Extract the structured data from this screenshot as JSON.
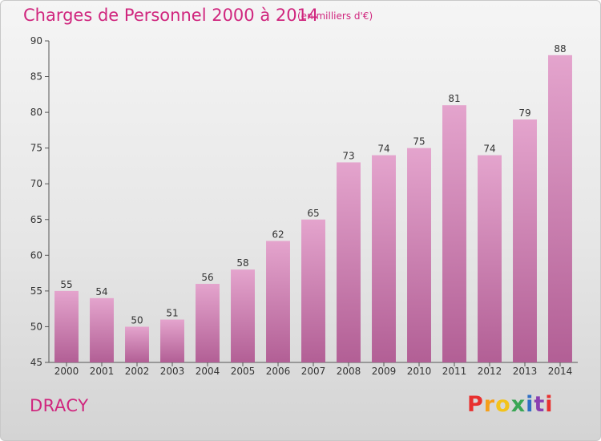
{
  "header": {
    "title": "Charges de Personnel 2000 à 2014",
    "subtitle": "(en milliers d'€)"
  },
  "footer": {
    "commune": "DRACY",
    "logo_text": "Proxiti",
    "logo_colors": [
      "#e8302f",
      "#f59f1a",
      "#f3c31b",
      "#3aa655",
      "#2f6fc4",
      "#8a3fb1",
      "#e8302f"
    ]
  },
  "colors": {
    "accent": "#d0267e",
    "bar_top": "#e4a4cd",
    "bar_bottom": "#b25f95"
  },
  "chart_data": {
    "type": "bar",
    "title": "Charges de Personnel 2000 à 2014",
    "subtitle": "(en milliers d'€)",
    "categories": [
      "2000",
      "2001",
      "2002",
      "2003",
      "2004",
      "2005",
      "2006",
      "2007",
      "2008",
      "2009",
      "2010",
      "2011",
      "2012",
      "2013",
      "2014"
    ],
    "values": [
      55,
      54,
      50,
      51,
      56,
      58,
      62,
      65,
      73,
      74,
      75,
      81,
      74,
      79,
      88
    ],
    "ylim": [
      45,
      90
    ],
    "yticks": [
      45,
      50,
      55,
      60,
      65,
      70,
      75,
      80,
      85,
      90
    ],
    "xlabel": "",
    "ylabel": "",
    "grid": false,
    "legend": "none"
  }
}
